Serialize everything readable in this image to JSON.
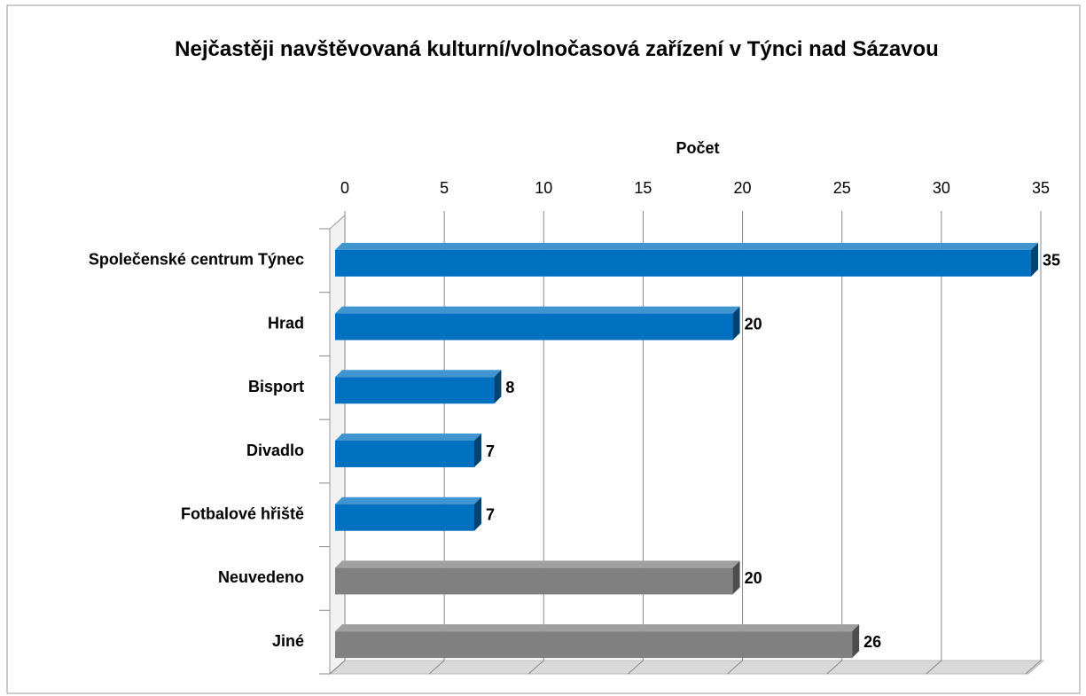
{
  "chart_data": {
    "type": "bar",
    "orientation": "horizontal",
    "title": "Nejčastěji navštěvovaná kulturní/volnočasová zařízení v Týnci nad Sázavou",
    "x_label": "Počet",
    "categories": [
      "Společenské centrum Týnec",
      "Hrad",
      "Bisport",
      "Divadlo",
      "Fotbalové hřiště",
      "Neuvedeno",
      "Jiné"
    ],
    "values": [
      35,
      20,
      8,
      7,
      7,
      20,
      26
    ],
    "colors": [
      "#0070c0",
      "#0070c0",
      "#0070c0",
      "#0070c0",
      "#0070c0",
      "#808080",
      "#808080"
    ],
    "xlim": [
      0,
      35
    ],
    "xticks": [
      0,
      5,
      10,
      15,
      20,
      25,
      30,
      35
    ],
    "grid": true
  }
}
